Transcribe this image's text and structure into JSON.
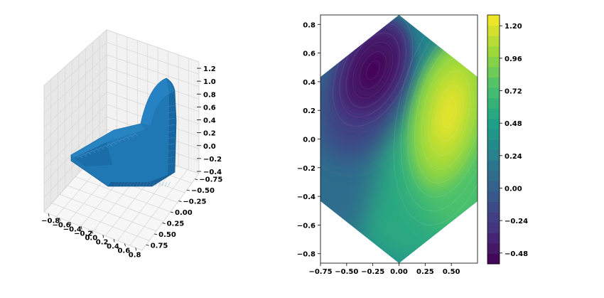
{
  "chart_data": [
    {
      "type": "surface3d",
      "x_ticks": [
        "−0.8",
        "−0.6",
        "−0.4",
        "−0.2",
        "0.0",
        "0.2",
        "0.4",
        "0.6",
        "0.8"
      ],
      "y_ticks": [
        "−0.75",
        "−0.50",
        "−0.25",
        "0.00",
        "0.25",
        "0.50",
        "0.75"
      ],
      "z_ticks": [
        "−0.4",
        "−0.2",
        "0.0",
        "0.2",
        "0.4",
        "0.6",
        "0.8",
        "1.0",
        "1.2"
      ],
      "xlim": [
        -0.87,
        0.87
      ],
      "ylim": [
        -0.87,
        0.87
      ],
      "zlim": [
        -0.55,
        1.3
      ],
      "surface_color": "#1f77b4",
      "grid": true
    },
    {
      "type": "contourf",
      "domain": "hexagon",
      "x_ticks": [
        "−0.75",
        "−0.50",
        "−0.25",
        "0.00",
        "0.25",
        "0.50"
      ],
      "x_tick_values": [
        -0.75,
        -0.5,
        -0.25,
        0.0,
        0.25,
        0.5
      ],
      "y_ticks": [
        "−0.8",
        "−0.6",
        "−0.4",
        "−0.2",
        "0.0",
        "0.2",
        "0.4",
        "0.6",
        "0.8"
      ],
      "y_tick_values": [
        -0.8,
        -0.6,
        -0.4,
        -0.2,
        0.0,
        0.2,
        0.4,
        0.6,
        0.8
      ],
      "xlim": [
        -0.75,
        0.75
      ],
      "ylim": [
        -0.866,
        0.866
      ],
      "hexagon_vertices": [
        [
          0,
          0.866
        ],
        [
          0.75,
          0.433
        ],
        [
          0.75,
          -0.433
        ],
        [
          0,
          -0.866
        ],
        [
          -0.75,
          -0.433
        ],
        [
          -0.75,
          0.433
        ]
      ],
      "colormap": "viridis",
      "value_range": [
        -0.56,
        1.28
      ],
      "features": [
        {
          "kind": "maximum",
          "x": 0.48,
          "y": 0.18,
          "value": 1.25
        },
        {
          "kind": "minimum",
          "x": -0.25,
          "y": 0.48,
          "value": -0.55
        }
      ],
      "colorbar_ticks": [
        "−0.48",
        "−0.24",
        "0.00",
        "0.24",
        "0.48",
        "0.72",
        "0.96",
        "1.20"
      ],
      "colorbar_tick_values": [
        -0.48,
        -0.24,
        0.0,
        0.24,
        0.48,
        0.72,
        0.96,
        1.2
      ]
    }
  ]
}
